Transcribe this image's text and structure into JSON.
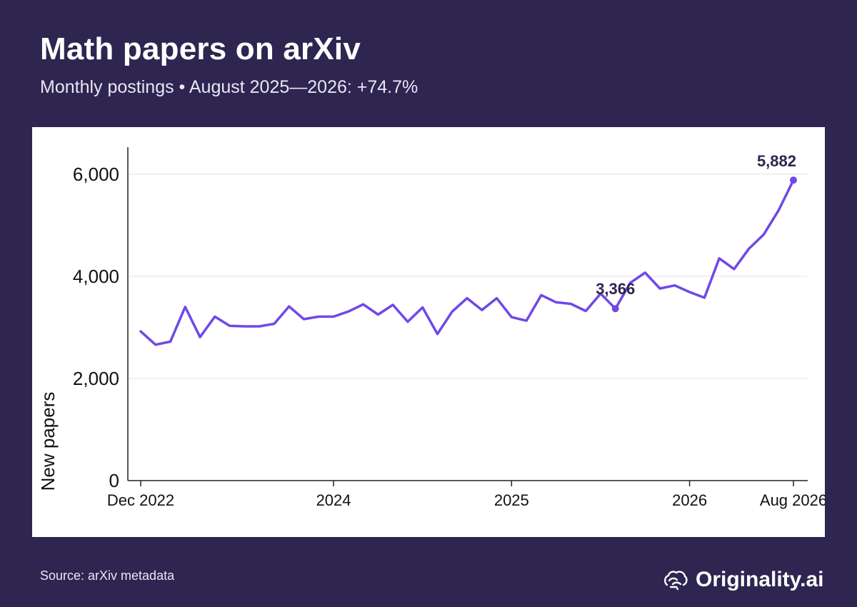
{
  "header": {
    "title": "Math papers on arXiv",
    "subtitle": "Monthly postings • August 2025—2026: +74.7%"
  },
  "footer": {
    "source": "Source: arXiv metadata",
    "brand": "Originality.ai",
    "brand_icon": "brain-icon"
  },
  "colors": {
    "background": "#2e2550",
    "panel": "#ffffff",
    "line": "#7048e8",
    "annotation": "#2e2550",
    "text": "#111111"
  },
  "chart_data": {
    "type": "line",
    "title": "Math papers on arXiv",
    "subtitle": "Monthly postings • August 2025—2026: +74.7%",
    "xlabel": "",
    "ylabel": "New papers",
    "x_range": [
      "2022-12",
      "2026-08"
    ],
    "ylim": [
      0,
      6500
    ],
    "yticks": [
      0,
      2000,
      4000,
      6000
    ],
    "ytick_labels": [
      "0",
      "2,000",
      "4,000",
      "6,000"
    ],
    "xticks": [
      "2022-12",
      "2024-01",
      "2025-01",
      "2026-01",
      "2026-08"
    ],
    "xtick_labels": [
      "Dec 2022",
      "2024",
      "2025",
      "2026",
      "Aug 2026"
    ],
    "grid": "horizontal",
    "legend": "none",
    "series": [
      {
        "x": [
          "2022-12",
          "2023-01",
          "2023-02",
          "2023-03",
          "2023-04",
          "2023-05",
          "2023-06",
          "2023-07",
          "2023-08",
          "2023-09",
          "2023-10",
          "2023-11",
          "2023-12",
          "2024-01",
          "2024-02",
          "2024-03",
          "2024-04",
          "2024-05",
          "2024-06",
          "2024-07",
          "2024-08",
          "2024-09",
          "2024-10",
          "2024-11",
          "2024-12",
          "2025-01",
          "2025-02",
          "2025-03",
          "2025-04",
          "2025-05",
          "2025-06",
          "2025-07",
          "2025-08",
          "2025-09",
          "2025-10",
          "2025-11",
          "2025-12",
          "2026-01",
          "2026-02",
          "2026-03",
          "2026-04",
          "2026-05",
          "2026-06",
          "2026-07",
          "2026-08"
        ],
        "values": [
          2920,
          2660,
          2720,
          3400,
          2810,
          3210,
          3030,
          3020,
          3020,
          3070,
          3410,
          3160,
          3210,
          3210,
          3310,
          3450,
          3250,
          3440,
          3110,
          3390,
          2870,
          3310,
          3570,
          3340,
          3570,
          3200,
          3130,
          3630,
          3490,
          3460,
          3320,
          3660,
          3366,
          3870,
          4070,
          3760,
          3820,
          3690,
          3580,
          4350,
          4140,
          4540,
          4820,
          5290,
          5882
        ]
      }
    ],
    "annotations": [
      {
        "x": "2025-08",
        "value": 3366,
        "label": "3,366"
      },
      {
        "x": "2026-08",
        "value": 5882,
        "label": "5,882"
      }
    ]
  }
}
